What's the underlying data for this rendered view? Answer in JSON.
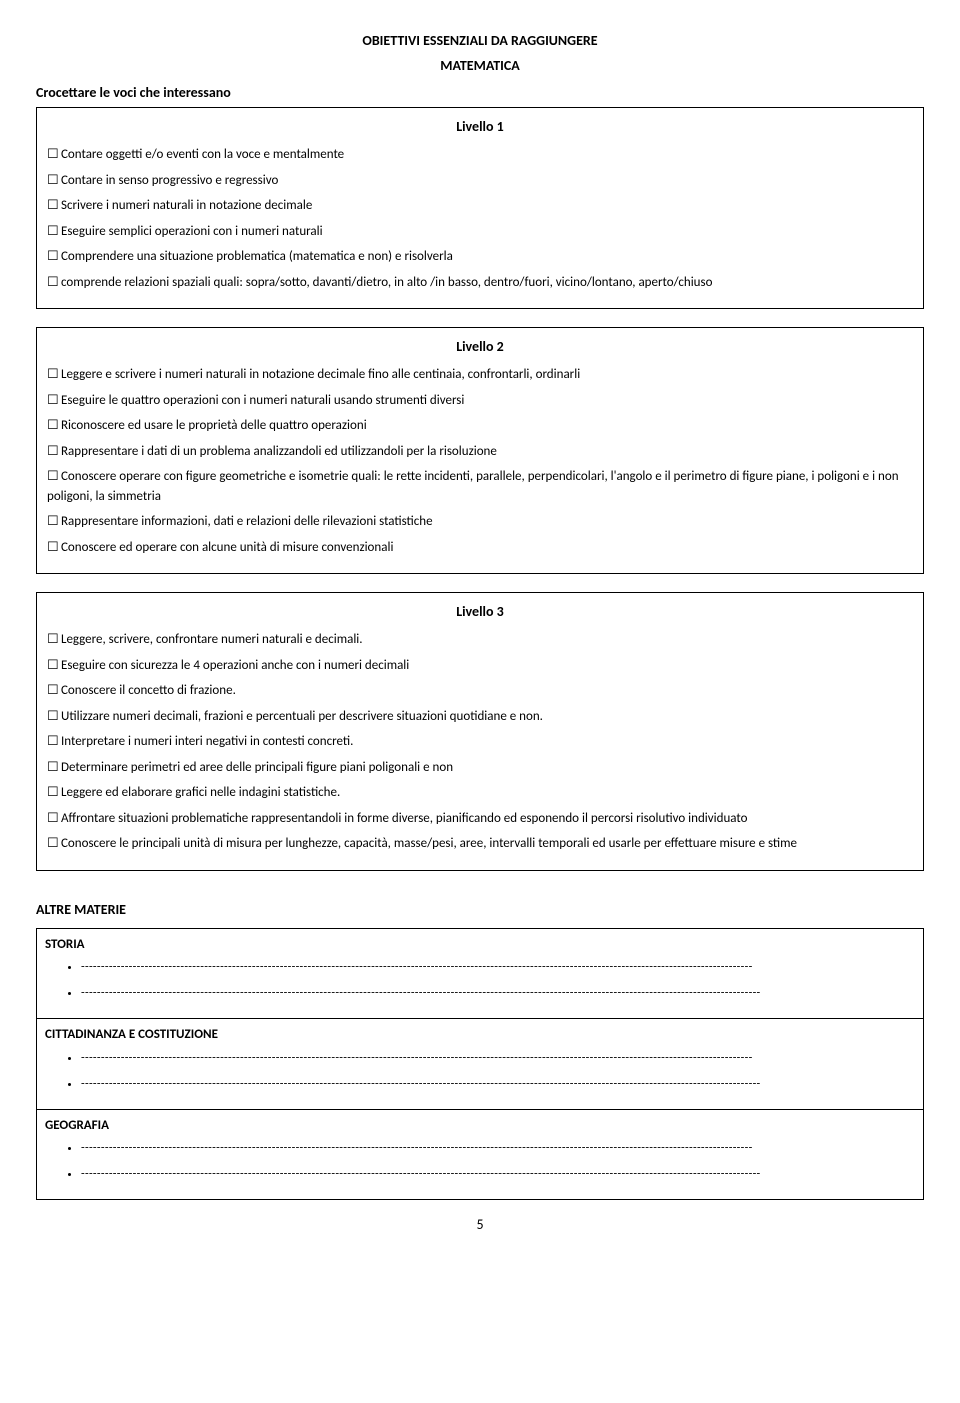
{
  "header": {
    "title": "OBIETTIVI  ESSENZIALI DA RAGGIUNGERE",
    "subject": "MATEMATICA",
    "instruction": "Crocettare le voci che interessano"
  },
  "checkbox_glyph": "☐",
  "level1": {
    "heading": "Livello 1",
    "items": [
      "Contare oggetti e/o eventi con la voce e mentalmente",
      "Contare in senso progressivo e regressivo",
      "Scrivere i numeri naturali in notazione decimale",
      "Eseguire semplici operazioni con i numeri naturali",
      "Comprendere una situazione problematica (matematica e non) e risolverla",
      "comprende relazioni spaziali quali: sopra/sotto, davanti/dietro, in alto /in basso, dentro/fuori, vicino/lontano, aperto/chiuso"
    ]
  },
  "level2": {
    "heading": "Livello 2",
    "items": [
      "Leggere e scrivere i numeri naturali in notazione decimale fino alle centinaia, confrontarli, ordinarli",
      "Eseguire le quattro operazioni con i numeri naturali usando strumenti diversi",
      "Riconoscere ed usare le proprietà delle quattro operazioni",
      "Rappresentare i dati di un problema analizzandoli ed utilizzandoli per la risoluzione",
      "Conoscere operare con figure geometriche e isometrie quali: le rette incidenti, parallele, perpendicolari, l'angolo e il perimetro di figure piane, i poligoni e i non poligoni, la  simmetria",
      "Rappresentare informazioni,  dati e relazioni delle rilevazioni statistiche",
      "Conoscere ed operare con alcune unità di misure convenzionali"
    ]
  },
  "level3": {
    "heading": "Livello 3",
    "items": [
      "Leggere, scrivere, confrontare numeri naturali e decimali.",
      "Eseguire con sicurezza le 4 operazioni anche con i numeri decimali",
      "Conoscere il concetto di frazione.",
      "Utilizzare numeri decimali, frazioni e percentuali per descrivere situazioni quotidiane e non.",
      "Interpretare i numeri interi negativi in contesti concreti.",
      "Determinare perimetri ed aree delle principali figure piani poligonali e non",
      "Leggere ed elaborare grafici nelle indagini statistiche.",
      "Affrontare situazioni problematiche rappresentandoli in forme diverse, pianificando ed esponendo il percorsi risolutivo individuato",
      "Conoscere le principali unità di misura per lunghezze, capacità, masse/pesi, aree, intervalli temporali ed usarle per effettuare misure e stime"
    ],
    "justify_indices": [
      7
    ]
  },
  "other_heading": "ALTRE MATERIE",
  "dash_line": "-------------------------------------------------------------------------------------------------------------------------------------------------------------------------",
  "dash_line2": "---------------------------------------------------------------------------------------------------------------------------------------------------------------------------",
  "blocks": [
    {
      "title": "STORIA"
    },
    {
      "title": "CITTADINANZA E COSTITUZIONE"
    },
    {
      "title": "GEOGRAFIA"
    }
  ],
  "page_number": "5"
}
